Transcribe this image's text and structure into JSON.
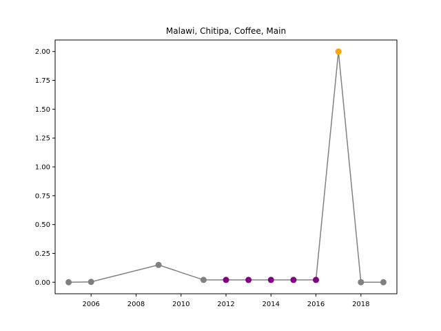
{
  "chart_data": {
    "type": "line",
    "title": "Malawi, Chitipa, Coffee, Main",
    "xlabel": "",
    "ylabel": "",
    "xlim": [
      2004.4,
      2019.6
    ],
    "ylim": [
      -0.1,
      2.1
    ],
    "xticks": [
      2006,
      2008,
      2010,
      2012,
      2014,
      2016,
      2018
    ],
    "yticks": [
      "0.00",
      "0.25",
      "0.50",
      "0.75",
      "1.00",
      "1.25",
      "1.50",
      "1.75",
      "2.00"
    ],
    "line_color": "#808080",
    "grid": false,
    "legend": "none",
    "series": [
      {
        "points": [
          {
            "x": 2005,
            "y": 0.0,
            "color": "#808080"
          },
          {
            "x": 2006,
            "y": 0.003,
            "color": "#808080"
          },
          {
            "x": 2009,
            "y": 0.15,
            "color": "#808080"
          },
          {
            "x": 2011,
            "y": 0.02,
            "color": "#808080"
          },
          {
            "x": 2012,
            "y": 0.02,
            "color": "#800080"
          },
          {
            "x": 2013,
            "y": 0.02,
            "color": "#800080"
          },
          {
            "x": 2014,
            "y": 0.02,
            "color": "#800080"
          },
          {
            "x": 2015,
            "y": 0.02,
            "color": "#800080"
          },
          {
            "x": 2016,
            "y": 0.02,
            "color": "#800080"
          },
          {
            "x": 2017,
            "y": 2.0,
            "color": "#FFA500"
          },
          {
            "x": 2018,
            "y": 0.0,
            "color": "#808080"
          },
          {
            "x": 2019,
            "y": 0.0,
            "color": "#808080"
          }
        ]
      }
    ]
  }
}
